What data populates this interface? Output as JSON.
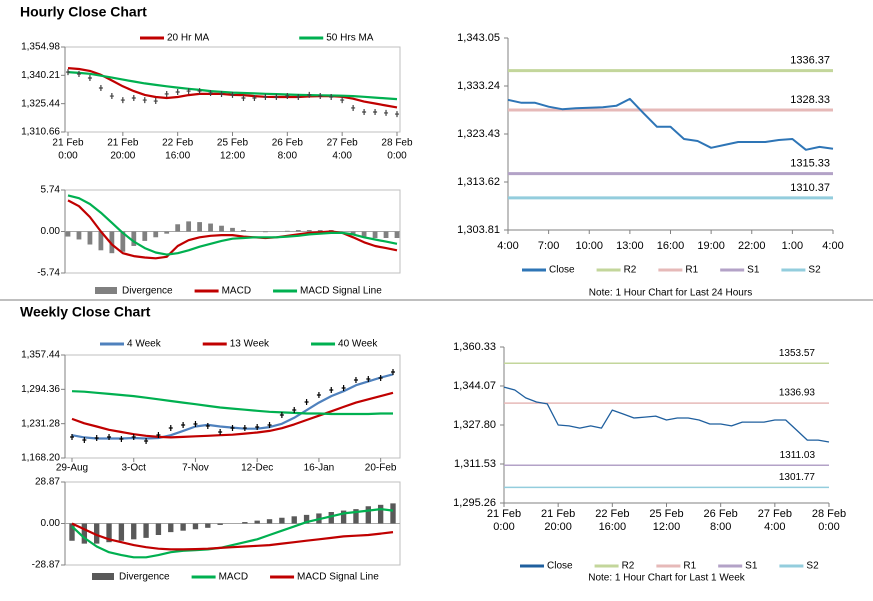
{
  "headings": [
    "Hourly Close Chart",
    "Weekly Close Chart"
  ],
  "chart_data": [
    {
      "type": "line",
      "xlim": [
        0,
        30
      ],
      "xticks": [
        {
          "value": 0,
          "label": [
            "21 Feb",
            "0:00"
          ]
        },
        {
          "value": 5,
          "label": [
            "21 Feb",
            "20:00"
          ]
        },
        {
          "value": 10,
          "label": [
            "22 Feb",
            "16:00"
          ]
        },
        {
          "value": 15,
          "label": [
            "25 Feb",
            "12:00"
          ]
        },
        {
          "value": 20,
          "label": [
            "26 Feb",
            "8:00"
          ]
        },
        {
          "value": 25,
          "label": [
            "27 Feb",
            "4:00"
          ]
        },
        {
          "value": 30,
          "label": [
            "28 Feb",
            "0:00"
          ]
        }
      ],
      "ylim": [
        1310.66,
        1354.98
      ],
      "yticks": [
        {
          "value": 1354.98,
          "label": "1,354.98"
        },
        {
          "value": 1340.21,
          "label": "1,340.21"
        },
        {
          "value": 1325.44,
          "label": "1,325.44"
        },
        {
          "value": 1310.66,
          "label": "1,310.66"
        }
      ],
      "values": [
        1341.9,
        1340.9,
        1338.8,
        1333.6,
        1329.4,
        1327.3,
        1328.4,
        1327.3,
        1326.8,
        1330.5,
        1331.5,
        1332.0,
        1332.0,
        1331.0,
        1330.5,
        1330.0,
        1328.4,
        1328.4,
        1328.9,
        1328.9,
        1329.4,
        1328.9,
        1330.0,
        1329.4,
        1328.9,
        1327.3,
        1323.2,
        1321.1,
        1321.1,
        1320.6,
        1320.0
      ],
      "color": "#404040",
      "series": [
        {
          "name": "20 Hr MA",
          "color": "#c00000",
          "values": [
            1344.0,
            1343.5,
            1342.5,
            1340.5,
            1337.5,
            1334.5,
            1332.0,
            1330.0,
            1328.9,
            1328.4,
            1328.9,
            1329.9,
            1330.5,
            1330.5,
            1330.5,
            1330.0,
            1329.9,
            1329.4,
            1329.0,
            1328.9,
            1328.9,
            1328.9,
            1329.2,
            1329.4,
            1329.4,
            1329.0,
            1328.0,
            1326.5,
            1325.5,
            1324.5,
            1323.5
          ]
        },
        {
          "name": "50 Hrs MA",
          "color": "#00b050",
          "values": [
            1341.9,
            1341.5,
            1341.0,
            1340.0,
            1339.0,
            1338.0,
            1337.0,
            1336.0,
            1335.2,
            1334.5,
            1333.8,
            1333.2,
            1332.6,
            1332.0,
            1331.6,
            1331.2,
            1331.0,
            1330.8,
            1330.6,
            1330.4,
            1330.2,
            1330.0,
            1329.9,
            1329.8,
            1329.7,
            1329.6,
            1329.4,
            1329.0,
            1328.6,
            1328.2,
            1327.8
          ]
        }
      ]
    },
    {
      "type": "combo",
      "ylim": [
        -5.74,
        5.74
      ],
      "yticks": [
        5.74,
        {
          "value": 0,
          "label": "0.00"
        },
        -5.74
      ],
      "series": [
        {
          "name": "Divergence",
          "style": "bar",
          "color": "#808080",
          "values": [
            -0.7,
            -1.1,
            -1.8,
            -2.6,
            -3.0,
            -2.8,
            -2.0,
            -1.3,
            -0.8,
            -0.3,
            1.0,
            1.4,
            1.3,
            1.1,
            0.8,
            0.5,
            0.2,
            0.0,
            -0.1,
            0.0,
            0.1,
            0.2,
            0.2,
            0.2,
            0.2,
            0.0,
            -0.4,
            -0.7,
            -0.9,
            -0.9,
            -0.9
          ]
        },
        {
          "name": "MACD",
          "style": "line",
          "color": "#c00000",
          "values": [
            4.3,
            3.5,
            2.0,
            0.0,
            -1.8,
            -3.0,
            -3.4,
            -3.6,
            -3.7,
            -3.5,
            -2.0,
            -1.2,
            -0.8,
            -0.6,
            -0.5,
            -0.5,
            -0.7,
            -0.8,
            -0.9,
            -0.8,
            -0.6,
            -0.4,
            -0.2,
            -0.1,
            0.0,
            -0.2,
            -0.8,
            -1.5,
            -2.0,
            -2.3,
            -2.6
          ]
        },
        {
          "name": "MACD Signal Line",
          "style": "line",
          "color": "#00b050",
          "values": [
            5.0,
            4.6,
            3.8,
            2.6,
            1.2,
            -0.2,
            -1.4,
            -2.3,
            -2.9,
            -3.2,
            -3.0,
            -2.6,
            -2.1,
            -1.7,
            -1.3,
            -1.0,
            -0.9,
            -0.8,
            -0.8,
            -0.8,
            -0.7,
            -0.6,
            -0.4,
            -0.3,
            -0.2,
            -0.2,
            -0.4,
            -0.8,
            -1.1,
            -1.4,
            -1.7
          ]
        }
      ]
    },
    {
      "type": "levels",
      "categories": [
        "4:00",
        null,
        null,
        "7:00",
        null,
        null,
        "10:00",
        null,
        null,
        "13:00",
        null,
        null,
        "16:00",
        null,
        null,
        "19:00",
        null,
        null,
        "22:00",
        null,
        null,
        "1:00",
        null,
        null,
        "4:00"
      ],
      "ylim": [
        1303.81,
        1343.05
      ],
      "yticks": [
        {
          "value": 1343.05,
          "label": "1,343.05"
        },
        {
          "value": 1333.24,
          "label": "1,333.24"
        },
        {
          "value": 1323.43,
          "label": "1,323.43"
        },
        {
          "value": 1313.62,
          "label": "1,313.62"
        },
        {
          "value": 1303.81,
          "label": "1,303.81"
        }
      ],
      "series": [
        {
          "name": "Close",
          "color": "#2e75b6",
          "values": [
            1330.4,
            1329.8,
            1329.8,
            1329.0,
            1328.5,
            1328.7,
            1328.8,
            1328.9,
            1329.2,
            1330.6,
            1327.7,
            1324.9,
            1324.9,
            1322.4,
            1322.0,
            1320.6,
            1321.2,
            1321.8,
            1321.8,
            1321.8,
            1322.2,
            1322.4,
            1320.2,
            1320.8,
            1320.4
          ]
        }
      ],
      "levels": [
        {
          "name": "R2",
          "value": 1336.37,
          "color": "#c3d69b"
        },
        {
          "name": "R1",
          "value": 1328.33,
          "color": "#e6b9b8"
        },
        {
          "name": "S1",
          "value": 1315.33,
          "color": "#b3a2c7"
        },
        {
          "name": "S2",
          "value": 1310.37,
          "color": "#93cddd"
        }
      ],
      "note": "Note: 1 Hour Chart for Last 24 Hours"
    },
    {
      "type": "line",
      "categories": [
        "29-Aug",
        null,
        null,
        null,
        null,
        "3-Oct",
        null,
        null,
        null,
        null,
        "7-Nov",
        null,
        null,
        null,
        null,
        "12-Dec",
        null,
        null,
        null,
        null,
        "16-Jan",
        null,
        null,
        null,
        null,
        "20-Feb",
        null
      ],
      "ylim": [
        1168.2,
        1357.44
      ],
      "yticks": [
        {
          "value": 1357.44,
          "label": "1,357.44"
        },
        {
          "value": 1294.36,
          "label": "1,294.36"
        },
        {
          "value": 1231.28,
          "label": "1,231.28"
        },
        {
          "value": 1168.2,
          "label": "1,168.20"
        }
      ],
      "values": [
        1206.8,
        1201.3,
        1204.9,
        1206.8,
        1203.1,
        1206.8,
        1199.4,
        1210.4,
        1223.3,
        1228.8,
        1230.7,
        1227.0,
        1216.0,
        1223.3,
        1223.3,
        1225.2,
        1228.8,
        1247.2,
        1256.4,
        1271.1,
        1284.0,
        1293.1,
        1296.8,
        1311.5,
        1313.3,
        1315.2,
        1326.2
      ],
      "color": "#000000",
      "series": [
        {
          "name": "4 Week",
          "color": "#4f81bd",
          "values": [
            1210,
            1206,
            1204,
            1204,
            1204,
            1205,
            1204,
            1205,
            1210,
            1218,
            1226,
            1229,
            1226,
            1224,
            1222,
            1222,
            1225,
            1231,
            1242,
            1256,
            1270,
            1282,
            1291,
            1302,
            1309,
            1316,
            1322
          ]
        },
        {
          "name": "13 Week",
          "color": "#c00000",
          "values": [
            1240,
            1232,
            1226,
            1220,
            1216,
            1212,
            1209,
            1207,
            1206,
            1207,
            1208,
            1209,
            1210,
            1211,
            1213,
            1215,
            1218,
            1223,
            1230,
            1238,
            1246,
            1254,
            1262,
            1270,
            1276,
            1282,
            1288
          ]
        },
        {
          "name": "40 Week",
          "color": "#00b050",
          "values": [
            1291,
            1290,
            1288,
            1286,
            1284,
            1282,
            1279,
            1276,
            1273,
            1270,
            1267,
            1264,
            1261,
            1259,
            1257,
            1255,
            1253,
            1252,
            1251,
            1250,
            1250,
            1249,
            1249,
            1249,
            1249,
            1250,
            1250
          ]
        }
      ]
    },
    {
      "type": "combo",
      "ylim": [
        -28.87,
        28.87
      ],
      "yticks": [
        28.87,
        {
          "value": 0,
          "label": "0.00"
        },
        -28.87
      ],
      "series": [
        {
          "name": "Divergence",
          "style": "bar",
          "color": "#595959",
          "values": [
            -12,
            -14,
            -14,
            -13,
            -12,
            -11,
            -10,
            -8,
            -6,
            -5,
            -4,
            -3,
            -1,
            0,
            1,
            2,
            3,
            4,
            5,
            6,
            7,
            8,
            9,
            10,
            12,
            13,
            14
          ]
        },
        {
          "name": "MACD",
          "style": "line",
          "color": "#00b050",
          "values": [
            -2,
            -10,
            -16,
            -20,
            -22,
            -23.5,
            -23.5,
            -22,
            -20,
            -19,
            -18.5,
            -18,
            -17,
            -15,
            -13,
            -11,
            -8,
            -5,
            -2,
            1,
            3,
            5,
            7,
            8,
            9,
            10,
            9
          ]
        },
        {
          "name": "MACD Signal Line",
          "style": "line",
          "color": "#c00000",
          "values": [
            0,
            -4,
            -8,
            -11,
            -13,
            -15,
            -16.5,
            -17.5,
            -18,
            -18,
            -17.8,
            -17.5,
            -17,
            -16.5,
            -16,
            -15.5,
            -15,
            -14,
            -13,
            -12,
            -11,
            -10,
            -9,
            -8.5,
            -8,
            -7,
            -6
          ]
        }
      ]
    },
    {
      "type": "levels",
      "xlim": [
        0,
        30
      ],
      "xticks": [
        {
          "value": 0,
          "label": [
            "21 Feb",
            "0:00"
          ]
        },
        {
          "value": 5,
          "label": [
            "21 Feb",
            "20:00"
          ]
        },
        {
          "value": 10,
          "label": [
            "22 Feb",
            "16:00"
          ]
        },
        {
          "value": 15,
          "label": [
            "25 Feb",
            "12:00"
          ]
        },
        {
          "value": 20,
          "label": [
            "26 Feb",
            "8:00"
          ]
        },
        {
          "value": 25,
          "label": [
            "27 Feb",
            "4:00"
          ]
        },
        {
          "value": 30,
          "label": [
            "28 Feb",
            "0:00"
          ]
        }
      ],
      "ylim": [
        1295.26,
        1360.33
      ],
      "yticks": [
        {
          "value": 1360.33,
          "label": "1,360.33"
        },
        {
          "value": 1344.07,
          "label": "1,344.07"
        },
        {
          "value": 1327.8,
          "label": "1,327.80"
        },
        {
          "value": 1311.53,
          "label": "1,311.53"
        },
        {
          "value": 1295.26,
          "label": "1,295.26"
        }
      ],
      "series": [
        {
          "name": "Close",
          "color": "#1f5f9e",
          "values": [
            1343.6,
            1342.4,
            1339.1,
            1337.4,
            1336.6,
            1327.8,
            1327.4,
            1326.5,
            1327.4,
            1326.5,
            1334.0,
            1332.4,
            1330.7,
            1331.1,
            1331.5,
            1329.9,
            1330.7,
            1330.7,
            1329.9,
            1328.2,
            1328.2,
            1327.4,
            1329.0,
            1329.0,
            1329.0,
            1329.9,
            1329.9,
            1325.7,
            1321.5,
            1321.5,
            1320.7
          ]
        }
      ],
      "levels": [
        {
          "name": "R2",
          "value": 1353.57,
          "color": "#c3d69b"
        },
        {
          "name": "R1",
          "value": 1336.93,
          "color": "#e6b9b8"
        },
        {
          "name": "S1",
          "value": 1311.03,
          "color": "#b3a2c7"
        },
        {
          "name": "S2",
          "value": 1301.77,
          "color": "#93cddd"
        }
      ],
      "note": "Note: 1 Hour Chart for Last 1 Week"
    }
  ]
}
